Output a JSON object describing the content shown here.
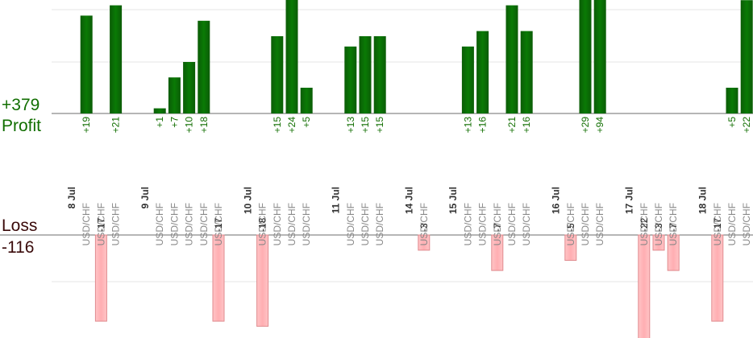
{
  "profit_total": "+379",
  "profit_label": "Profit",
  "loss_label": "Loss",
  "loss_total": "-116",
  "colors": {
    "profit": "#0a6a05",
    "profit_text": "#116e00",
    "loss_fill": "#ffb6b9",
    "loss_stroke": "#e08a8e",
    "grid": "#e6e6e6",
    "axis": "#6e6e6e",
    "date_text": "#333333",
    "pair_text": "#888888"
  },
  "chart_data": {
    "type": "bar",
    "title": "",
    "profit_ylim": [
      0,
      24
    ],
    "loss_ylim": [
      -24,
      0
    ],
    "columns": [
      {
        "date": "8 Jul"
      },
      {
        "pair": "USD/CHF",
        "profit": 19
      },
      {
        "pair": "USD/CHF",
        "loss": -17
      },
      {
        "pair": "USD/CHF",
        "profit": 21
      },
      {
        "gap": true
      },
      {
        "date": "9 Jul"
      },
      {
        "pair": "USD/CHF",
        "profit": 1
      },
      {
        "pair": "USD/CHF",
        "profit": 7
      },
      {
        "pair": "USD/CHF",
        "profit": 10
      },
      {
        "pair": "USD/CHF",
        "profit": 18
      },
      {
        "pair": "USD/CHF",
        "loss": -17
      },
      {
        "gap": true
      },
      {
        "date": "10 Jul"
      },
      {
        "pair": "USD/CHF",
        "loss": -18
      },
      {
        "pair": "USD/CHF",
        "profit": 15
      },
      {
        "pair": "USD/CHF",
        "profit": 24
      },
      {
        "pair": "USD/CHF",
        "profit": 5
      },
      {
        "gap": true
      },
      {
        "date": "11 Jul"
      },
      {
        "pair": "USD/CHF",
        "profit": 13
      },
      {
        "pair": "USD/CHF",
        "profit": 15
      },
      {
        "pair": "USD/CHF",
        "profit": 15
      },
      {
        "gap": true
      },
      {
        "date": "14 Jul"
      },
      {
        "pair": "USD/CHF",
        "loss": -3
      },
      {
        "gap": true
      },
      {
        "date": "15 Jul"
      },
      {
        "pair": "USD/CHF",
        "profit": 13
      },
      {
        "pair": "USD/CHF",
        "profit": 16
      },
      {
        "pair": "USD/CHF",
        "loss": -7
      },
      {
        "pair": "USD/CHF",
        "profit": 21
      },
      {
        "pair": "USD/CHF",
        "profit": 16
      },
      {
        "gap": true
      },
      {
        "date": "16 Jul"
      },
      {
        "pair": "USD/CHF",
        "loss": -5
      },
      {
        "pair": "USD/CHF",
        "profit": 29
      },
      {
        "pair": "USD/CHF",
        "profit": 94
      },
      {
        "gap": true
      },
      {
        "date": "17 Jul"
      },
      {
        "pair": "USD/CHF",
        "loss": -22
      },
      {
        "pair": "USD/CHF",
        "loss": -3
      },
      {
        "pair": "USD/CHF",
        "loss": -7
      },
      {
        "gap": true
      },
      {
        "date": "18 Jul"
      },
      {
        "pair": "USD/CHF",
        "loss": -17
      },
      {
        "pair": "USD/CHF",
        "profit": 5
      },
      {
        "pair": "USD/CHF",
        "profit": 22
      }
    ]
  }
}
